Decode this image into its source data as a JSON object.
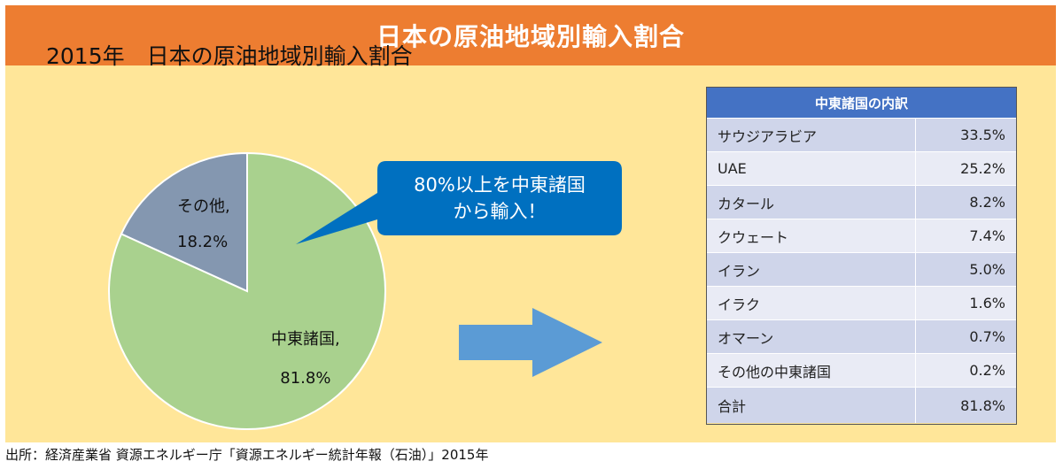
{
  "header": {
    "title": "日本の原油地域別輸入割合"
  },
  "chart_data": {
    "type": "pie",
    "title": "2015年　日本の原油地域別輸入割合",
    "slices": [
      {
        "name": "中東諸国",
        "value": 81.8,
        "label": "81.8%",
        "color": "#a9d18e"
      },
      {
        "name": "その他",
        "value": 18.2,
        "label": "18.2%",
        "color": "#8497b0"
      }
    ],
    "slice_name_suffix": ","
  },
  "callout": {
    "line1": "80%以上を中東諸国",
    "line2": "から輸入！",
    "color": "#0070c0"
  },
  "arrow": {
    "color": "#5b9bd5"
  },
  "table": {
    "header": "中東諸国の内訳",
    "rows": [
      {
        "name": "サウジアラビア",
        "value": "33.5%"
      },
      {
        "name": "UAE",
        "value": "25.2%"
      },
      {
        "name": "カタール",
        "value": "8.2%"
      },
      {
        "name": "クウェート",
        "value": "7.4%"
      },
      {
        "name": "イラン",
        "value": "5.0%"
      },
      {
        "name": "イラク",
        "value": "1.6%"
      },
      {
        "name": "オマーン",
        "value": "0.7%"
      },
      {
        "name": "その他の中東諸国",
        "value": "0.2%"
      }
    ],
    "total": {
      "name": "合計",
      "value": "81.8%"
    }
  },
  "footer": "出所：経済産業省 資源エネルギー庁「資源エネルギー統計年報（石油）」2015年",
  "colors": {
    "header": "#ed7d31",
    "panel": "#ffe699",
    "table_header": "#4472c4",
    "row_dark": "#cfd5ea",
    "row_light": "#e9ebf5"
  }
}
